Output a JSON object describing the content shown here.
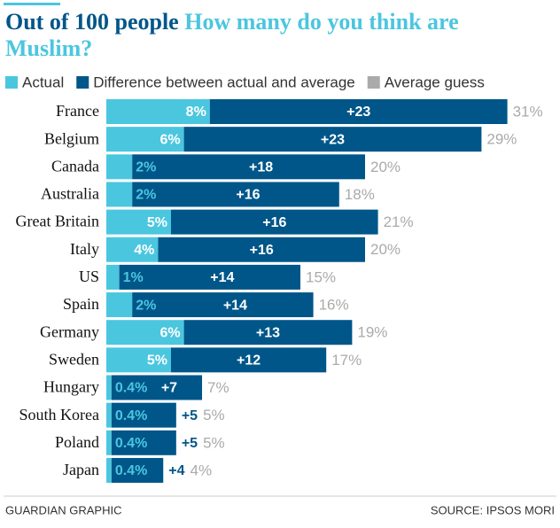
{
  "chart_data": {
    "type": "bar",
    "stacked": true,
    "title_lead": "Out of 100 people",
    "title": "How many do you think are Muslim?",
    "categories": [
      "France",
      "Belgium",
      "Canada",
      "Australia",
      "Great Britain",
      "Italy",
      "US",
      "Spain",
      "Germany",
      "Sweden",
      "Hungary",
      "South Korea",
      "Poland",
      "Japan"
    ],
    "series": [
      {
        "name": "Actual",
        "color": "#4bc6df",
        "values": [
          8,
          6,
          2,
          2,
          5,
          4,
          1,
          2,
          6,
          5,
          0.4,
          0.4,
          0.4,
          0.4
        ],
        "value_labels": [
          "8%",
          "6%",
          "2%",
          "2%",
          "5%",
          "4%",
          "1%",
          "2%",
          "6%",
          "5%",
          "0.4%",
          "0.4%",
          "0.4%",
          "0.4%"
        ]
      },
      {
        "name": "Difference between actual and average",
        "color": "#005689",
        "values": [
          23,
          23,
          18,
          16,
          16,
          16,
          14,
          14,
          13,
          12,
          7,
          5,
          5,
          4
        ],
        "value_labels": [
          "+23",
          "+23",
          "+18",
          "+16",
          "+16",
          "+16",
          "+14",
          "+14",
          "+13",
          "+12",
          "+7",
          "+5",
          "+5",
          "+4"
        ]
      },
      {
        "name": "Average guess",
        "color": "#aaaaaa",
        "values": [
          31,
          29,
          20,
          18,
          21,
          20,
          15,
          16,
          19,
          17,
          7,
          5,
          5,
          4
        ],
        "value_labels": [
          "31%",
          "29%",
          "20%",
          "18%",
          "21%",
          "20%",
          "15%",
          "16%",
          "19%",
          "17%",
          "7%",
          "5%",
          "5%",
          "4%"
        ]
      }
    ],
    "credit": "GUARDIAN GRAPHIC",
    "source": "SOURCE: IPSOS MORI"
  }
}
